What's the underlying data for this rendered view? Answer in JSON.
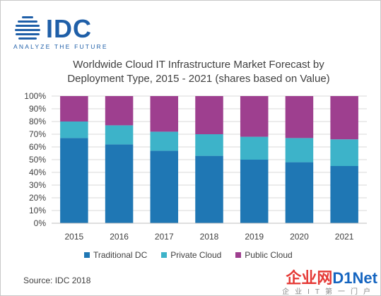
{
  "logo": {
    "word": "IDC",
    "tagline": "ANALYZE THE FUTURE",
    "color": "#1f5fa8"
  },
  "watermark": {
    "text_red": "企业网",
    "text_blue": "D1Net",
    "sub": "企业IT第一门户"
  },
  "source": "Source: IDC 2018",
  "chart_data": {
    "type": "bar",
    "stacked": true,
    "title_line1": "Worldwide Cloud IT Infrastructure Market Forecast by",
    "title_line2": "Deployment Type, 2015 - 2021 (shares based on Value)",
    "categories": [
      "2015",
      "2016",
      "2017",
      "2018",
      "2019",
      "2020",
      "2021"
    ],
    "ylim": [
      0,
      100
    ],
    "yticks": [
      "0%",
      "10%",
      "20%",
      "30%",
      "40%",
      "50%",
      "60%",
      "70%",
      "80%",
      "90%",
      "100%"
    ],
    "grid": true,
    "legend_position": "bottom",
    "series": [
      {
        "name": "Traditional DC",
        "color": "#1f77b4",
        "values": [
          67,
          62,
          57,
          53,
          50,
          48,
          45
        ]
      },
      {
        "name": "Private Cloud",
        "color": "#3db3c9",
        "values": [
          13,
          15,
          15,
          17,
          18,
          19,
          21
        ]
      },
      {
        "name": "Public Cloud",
        "color": "#9e3f8f",
        "values": [
          20,
          23,
          28,
          30,
          32,
          33,
          34
        ]
      }
    ]
  }
}
